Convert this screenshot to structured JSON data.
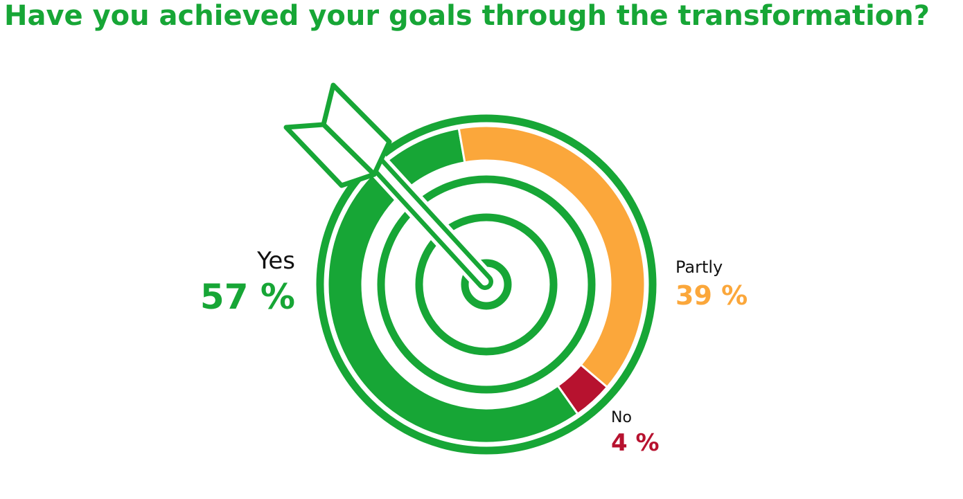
{
  "chart_data": {
    "type": "donut",
    "title": "Have you achieved your goals through the transformation?",
    "categories": [
      "Yes",
      "Partly",
      "No"
    ],
    "values": [
      57,
      39,
      4
    ],
    "value_labels": [
      "57 %",
      "39 %",
      "4 %"
    ],
    "colors": [
      "#17a636",
      "#fba73b",
      "#b7122f"
    ]
  }
}
